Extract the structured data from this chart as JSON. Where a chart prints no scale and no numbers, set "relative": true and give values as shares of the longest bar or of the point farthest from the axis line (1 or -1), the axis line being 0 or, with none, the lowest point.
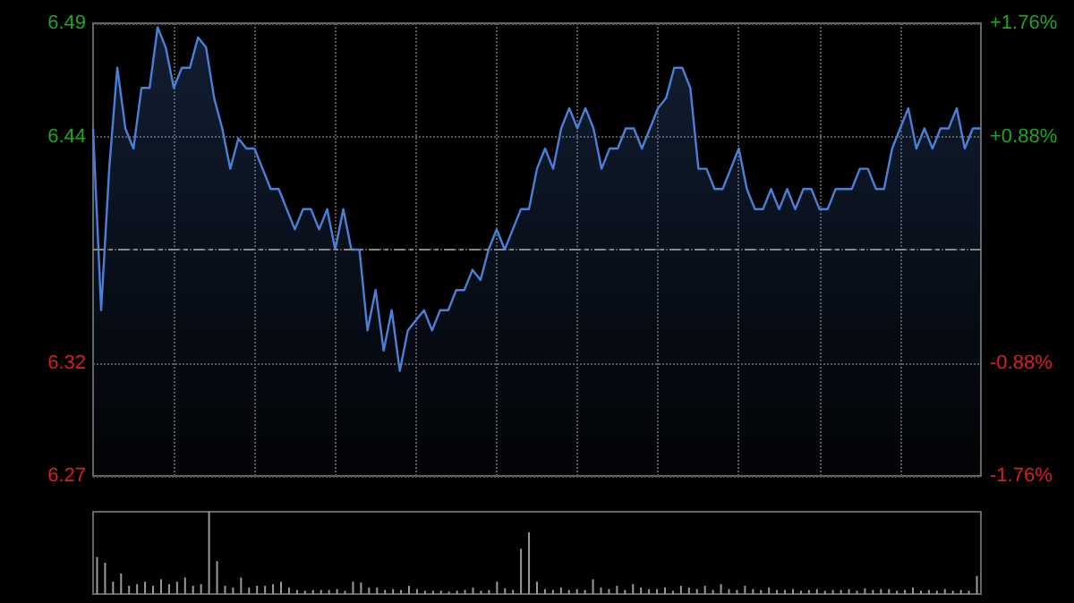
{
  "chart_data": [
    {
      "type": "area",
      "categories": [
        null,
        null,
        null,
        null,
        null,
        null,
        null,
        null,
        null,
        null,
        null,
        null,
        null,
        null,
        null,
        null,
        null,
        null,
        null,
        null,
        null,
        null,
        null,
        null,
        null,
        null,
        null,
        null,
        null,
        null,
        null,
        null,
        null,
        null,
        null,
        null,
        null,
        null,
        null,
        null,
        null,
        null,
        null,
        null,
        null,
        null,
        null,
        null,
        null,
        null,
        null,
        null,
        null,
        null,
        null,
        null,
        null,
        null,
        null,
        null,
        null,
        null,
        null,
        null,
        null,
        null,
        null,
        null,
        null,
        null,
        null,
        null,
        null,
        null,
        null,
        null,
        null,
        null,
        null,
        null,
        null,
        null,
        null,
        null,
        null,
        null,
        null,
        null,
        null,
        null,
        null,
        null,
        null,
        null,
        null,
        null,
        null,
        null,
        null,
        null,
        null,
        null,
        null,
        null,
        null,
        null,
        null,
        null,
        null,
        null,
        null
      ],
      "series": [
        {
          "color": "#4a80d8",
          "values": [
            6.44,
            6.35,
            6.42,
            6.47,
            6.44,
            6.43,
            6.46,
            6.46,
            6.49,
            6.48,
            6.46,
            6.47,
            6.47,
            6.485,
            6.48,
            6.455,
            6.44,
            6.42,
            6.435,
            6.43,
            6.43,
            6.42,
            6.41,
            6.41,
            6.4,
            6.39,
            6.4,
            6.4,
            6.39,
            6.4,
            6.38,
            6.4,
            6.38,
            6.38,
            6.34,
            6.36,
            6.33,
            6.35,
            6.32,
            6.34,
            6.345,
            6.35,
            6.34,
            6.35,
            6.35,
            6.36,
            6.36,
            6.37,
            6.365,
            6.38,
            6.39,
            6.38,
            6.39,
            6.4,
            6.4,
            6.42,
            6.43,
            6.42,
            6.44,
            6.45,
            6.44,
            6.45,
            6.44,
            6.42,
            6.43,
            6.43,
            6.44,
            6.44,
            6.43,
            6.44,
            6.45,
            6.455,
            6.47,
            6.47,
            6.46,
            6.42,
            6.42,
            6.41,
            6.41,
            6.42,
            6.43,
            6.41,
            6.4,
            6.4,
            6.41,
            6.4,
            6.41,
            6.4,
            6.41,
            6.41,
            6.4,
            6.4,
            6.41,
            6.41,
            6.41,
            6.42,
            6.42,
            6.41,
            6.41,
            6.43,
            6.44,
            6.45,
            6.43,
            6.44,
            6.43,
            6.44,
            6.44,
            6.45,
            6.43,
            6.44,
            6.44
          ]
        }
      ],
      "ylim": [
        6.268,
        6.492
      ],
      "yticks": [
        {
          "value": 6.492,
          "label": "6.49"
        },
        {
          "value": 6.436,
          "label": "6.44"
        },
        {
          "value": 6.324,
          "label": "6.32"
        },
        {
          "value": 6.268,
          "label": "6.27"
        }
      ],
      "y2lim": [
        -1.76,
        1.76
      ],
      "y2ticks": [
        {
          "value": 1.76,
          "label": "+1.76%"
        },
        {
          "value": 0.88,
          "label": "+0.88%"
        },
        {
          "value": -0.88,
          "label": "-0.88%"
        },
        {
          "value": -1.76,
          "label": "-1.76%"
        }
      ],
      "ref_lines": [
        {
          "axis": "y",
          "value": 6.38,
          "color": "#888888",
          "line_style": "dashed"
        }
      ],
      "grid": true,
      "tick_labels": "y"
    },
    {
      "type": "bar",
      "relative": true,
      "color": "#9a9a9a",
      "categories": [
        null,
        null,
        null,
        null,
        null,
        null,
        null,
        null,
        null,
        null,
        null,
        null,
        null,
        null,
        null,
        null,
        null,
        null,
        null,
        null,
        null,
        null,
        null,
        null,
        null,
        null,
        null,
        null,
        null,
        null,
        null,
        null,
        null,
        null,
        null,
        null,
        null,
        null,
        null,
        null,
        null,
        null,
        null,
        null,
        null,
        null,
        null,
        null,
        null,
        null,
        null,
        null,
        null,
        null,
        null,
        null,
        null,
        null,
        null,
        null,
        null,
        null,
        null,
        null,
        null,
        null,
        null,
        null,
        null,
        null,
        null,
        null,
        null,
        null,
        null,
        null,
        null,
        null,
        null,
        null,
        null,
        null,
        null,
        null,
        null,
        null,
        null,
        null,
        null,
        null,
        null,
        null,
        null,
        null,
        null,
        null,
        null,
        null,
        null,
        null,
        null,
        null,
        null,
        null,
        null,
        null,
        null,
        null,
        null,
        null,
        null
      ],
      "values": [
        0.45,
        0.38,
        0.15,
        0.25,
        0.1,
        0.12,
        0.15,
        0.1,
        0.18,
        0.12,
        0.15,
        0.2,
        0.1,
        0.12,
        1.0,
        0.4,
        0.1,
        0.08,
        0.2,
        0.08,
        0.1,
        0.1,
        0.12,
        0.15,
        0.08,
        0.05,
        0.04,
        0.05,
        0.05,
        0.05,
        0.06,
        0.04,
        0.15,
        0.14,
        0.08,
        0.08,
        0.05,
        0.06,
        0.05,
        0.1,
        0.06,
        0.04,
        0.04,
        0.04,
        0.03,
        0.04,
        0.05,
        0.08,
        0.04,
        0.05,
        0.15,
        0.07,
        0.05,
        0.55,
        0.75,
        0.15,
        0.06,
        0.05,
        0.08,
        0.05,
        0.06,
        0.05,
        0.18,
        0.08,
        0.06,
        0.1,
        0.05,
        0.12,
        0.08,
        0.06,
        0.06,
        0.08,
        0.04,
        0.1,
        0.08,
        0.06,
        0.1,
        0.05,
        0.12,
        0.06,
        0.05,
        0.1,
        0.06,
        0.05,
        0.08,
        0.05,
        0.05,
        0.06,
        0.04,
        0.05,
        0.06,
        0.04,
        0.05,
        0.05,
        0.06,
        0.04,
        0.07,
        0.05,
        0.06,
        0.06,
        0.04,
        0.05,
        0.08,
        0.04,
        0.05,
        0.04,
        0.06,
        0.04,
        0.05,
        0.04,
        0.22
      ],
      "tick_labels": false
    }
  ]
}
